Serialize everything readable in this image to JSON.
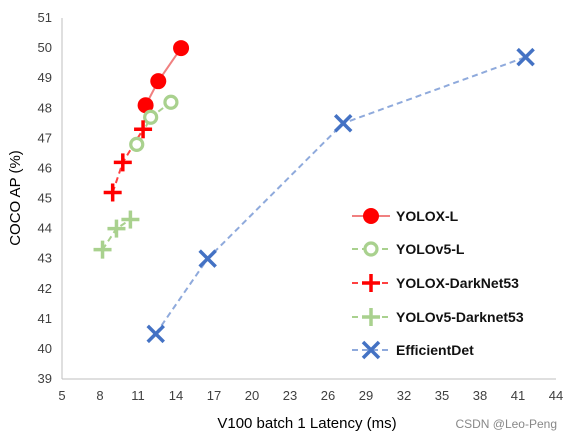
{
  "chart_data": {
    "type": "scatter",
    "xlabel": "V100 batch 1 Latency (ms)",
    "ylabel": "COCO AP (%)",
    "xlim": [
      5,
      44
    ],
    "ylim": [
      39,
      51
    ],
    "xticks": [
      "5",
      "8",
      "11",
      "14",
      "17",
      "20",
      "23",
      "26",
      "29",
      "32",
      "35",
      "38",
      "41",
      "44"
    ],
    "yticks": [
      "39",
      "40",
      "41",
      "42",
      "43",
      "44",
      "45",
      "46",
      "47",
      "48",
      "49",
      "50",
      "51"
    ],
    "grid": false,
    "legend_position": "right",
    "series": [
      {
        "name": "YOLOX-L",
        "marker": "circle-filled",
        "color": "#ff0000",
        "line_style": "solid",
        "line_color": "#f08080",
        "x": [
          11.6,
          12.6,
          14.4
        ],
        "y": [
          48.1,
          48.9,
          50.0
        ]
      },
      {
        "name": "YOLOv5-L",
        "marker": "circle-open",
        "color": "#a9d18e",
        "line_style": "dashed",
        "line_color": "#a9d18e",
        "x": [
          10.9,
          12.0,
          13.6
        ],
        "y": [
          46.8,
          47.7,
          48.2
        ]
      },
      {
        "name": "YOLOX-DarkNet53",
        "marker": "plus",
        "color": "#ff0000",
        "line_style": "dashed",
        "line_color": "#ff4040",
        "x": [
          9.0,
          9.8,
          11.4
        ],
        "y": [
          45.2,
          46.2,
          47.3
        ]
      },
      {
        "name": "YOLOv5-Darknet53",
        "marker": "plus",
        "color": "#a9d18e",
        "line_style": "dashed",
        "line_color": "#a9d18e",
        "x": [
          8.2,
          9.3,
          10.4
        ],
        "y": [
          43.3,
          44.0,
          44.3
        ]
      },
      {
        "name": "EfficientDet",
        "marker": "x",
        "color": "#4472c4",
        "line_style": "dashed",
        "line_color": "#8faadc",
        "x": [
          12.4,
          16.5,
          27.2,
          41.6
        ],
        "y": [
          40.5,
          43.0,
          47.5,
          49.7
        ]
      }
    ]
  },
  "watermark": "CSDN @Leo-Peng"
}
